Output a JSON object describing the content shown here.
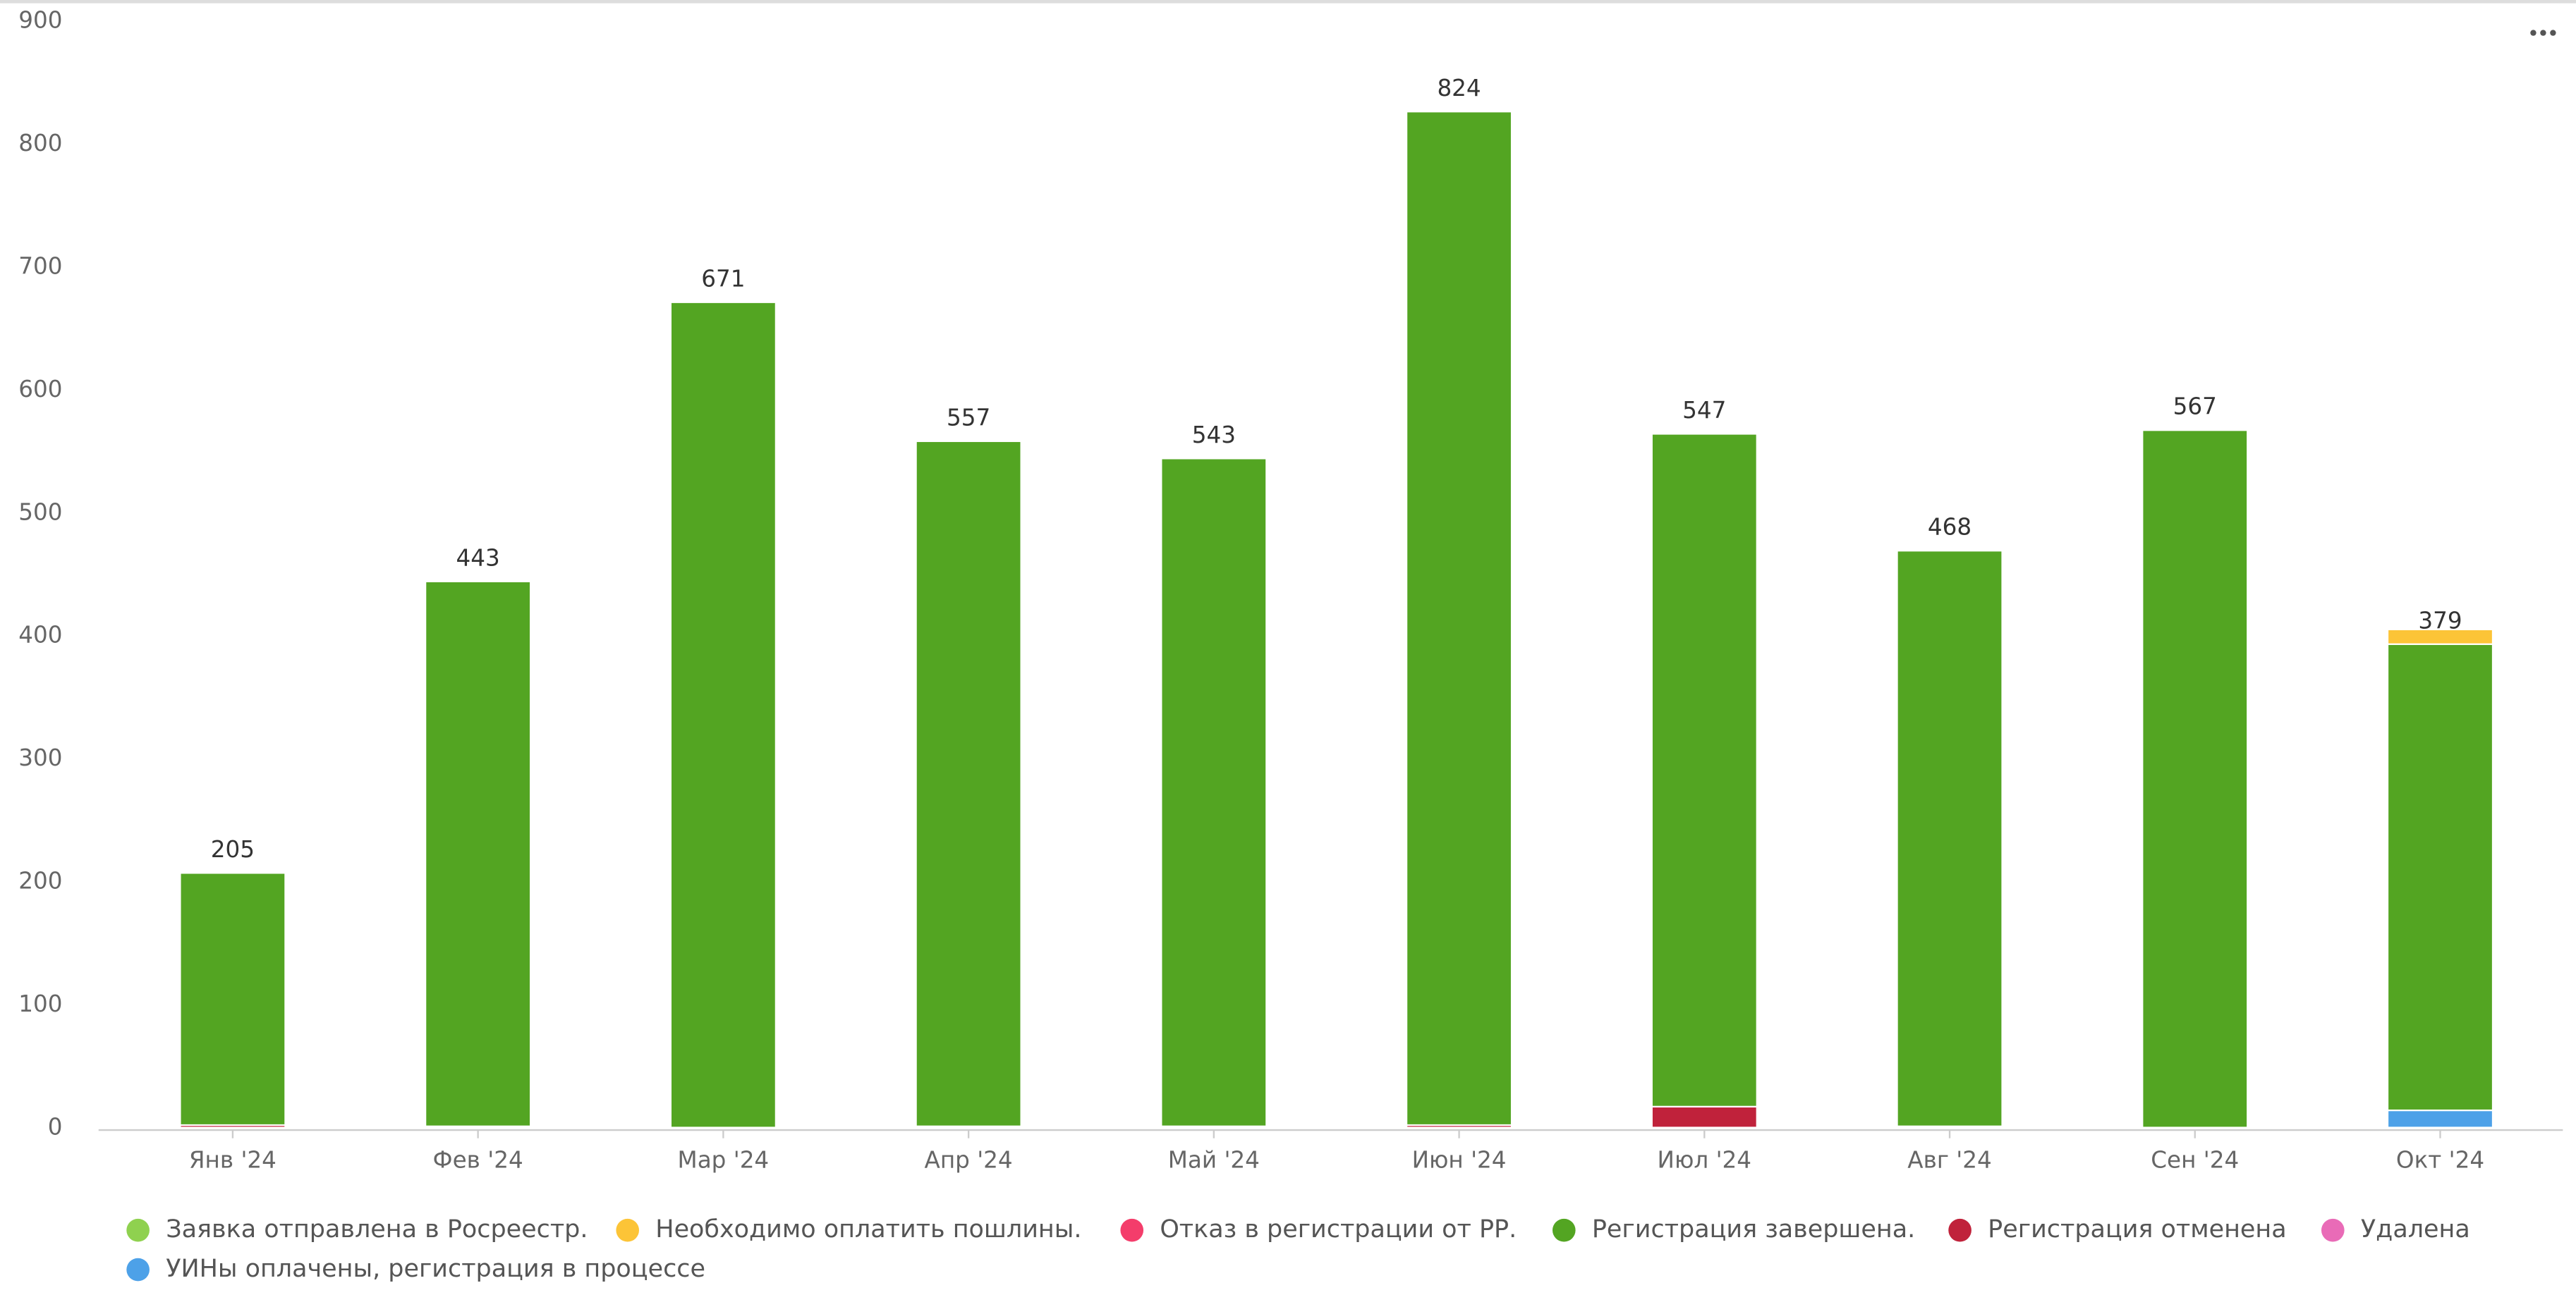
{
  "chart_data": {
    "type": "stacked_bar",
    "categories": [
      "Янв '24",
      "Фев '24",
      "Мар '24",
      "Апр '24",
      "Май '24",
      "Июн '24",
      "Июл '24",
      "Авг '24",
      "Сен '24",
      "Окт '24"
    ],
    "series": [
      {
        "name": "Заявка отправлена в Росреестр.",
        "color": "#8fd14f",
        "values": [
          null,
          null,
          null,
          null,
          null,
          null,
          null,
          null,
          null,
          null
        ]
      },
      {
        "name": "Необходимо оплатить пошлины.",
        "color": "#fcc437",
        "values": [
          null,
          null,
          null,
          null,
          null,
          null,
          null,
          null,
          null,
          12
        ],
        "show_labels": false
      },
      {
        "name": "Отказ в регистрации от РР.",
        "color": "#f43d6b",
        "values": [
          null,
          null,
          null,
          null,
          null,
          null,
          null,
          null,
          null,
          null
        ]
      },
      {
        "name": "Регистрация завершена.",
        "color": "#53a522",
        "values": [
          205,
          443,
          671,
          557,
          543,
          824,
          547,
          468,
          567,
          379
        ]
      },
      {
        "name": "Регистрация отменена",
        "color": "#c0223b",
        "values": [
          2,
          1,
          null,
          1,
          1,
          2,
          17,
          1,
          null,
          null
        ]
      },
      {
        "name": "Удалена",
        "color": "#e96bb7",
        "values": [
          null,
          null,
          null,
          null,
          null,
          null,
          null,
          null,
          null,
          null
        ]
      },
      {
        "name": "УИНы оплачены, регистрация в процессе",
        "color": "#4da1e8",
        "values": [
          null,
          null,
          null,
          null,
          null,
          null,
          null,
          null,
          null,
          14
        ]
      }
    ],
    "ylim": [
      0,
      900
    ],
    "yticks": [
      0,
      100,
      200,
      300,
      400,
      500,
      600,
      700,
      800,
      900
    ],
    "grid": false
  }
}
